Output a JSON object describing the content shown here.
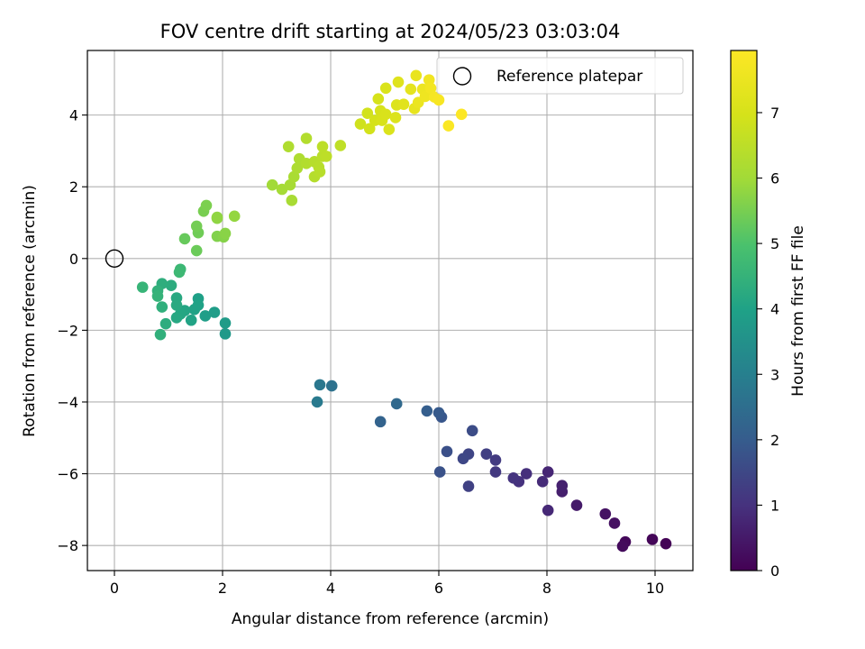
{
  "chart_data": {
    "type": "scatter",
    "title": "FOV centre drift starting at 2024/05/23 03:03:04",
    "xlabel": "Angular distance from reference (arcmin)",
    "ylabel": "Rotation from reference (arcmin)",
    "xlim": [
      -0.5,
      10.7
    ],
    "ylim": [
      -8.7,
      5.8
    ],
    "xticks": [
      0,
      2,
      4,
      6,
      8,
      10
    ],
    "yticks": [
      -8,
      -6,
      -4,
      -2,
      0,
      2,
      4
    ],
    "xtick_labels": [
      "0",
      "2",
      "4",
      "6",
      "8",
      "10"
    ],
    "ytick_labels": [
      "−8",
      "−6",
      "−4",
      "−2",
      "0",
      "2",
      "4"
    ],
    "grid": true,
    "colormap": "viridis",
    "colorbar": {
      "label": "Hours from first FF file",
      "range": [
        0,
        7.95
      ],
      "ticks": [
        0,
        1,
        2,
        3,
        4,
        5,
        6,
        7
      ],
      "tick_labels": [
        "0",
        "1",
        "2",
        "3",
        "4",
        "5",
        "6",
        "7"
      ]
    },
    "legend": {
      "location": "top-right",
      "entries": [
        {
          "label": "Reference platepar",
          "marker": "open-circle"
        }
      ]
    },
    "reference_point": {
      "x": 0,
      "y": 0
    },
    "points": [
      {
        "x": 10.2,
        "y": -7.95,
        "h": 0.05
      },
      {
        "x": 9.95,
        "y": -7.83,
        "h": 0.1
      },
      {
        "x": 9.45,
        "y": -7.9,
        "h": 0.15
      },
      {
        "x": 9.4,
        "y": -8.02,
        "h": 0.2
      },
      {
        "x": 9.25,
        "y": -7.38,
        "h": 0.3
      },
      {
        "x": 9.08,
        "y": -7.12,
        "h": 0.35
      },
      {
        "x": 8.55,
        "y": -6.88,
        "h": 0.5
      },
      {
        "x": 8.28,
        "y": -6.5,
        "h": 0.6
      },
      {
        "x": 8.28,
        "y": -6.33,
        "h": 0.65
      },
      {
        "x": 8.02,
        "y": -5.95,
        "h": 0.75
      },
      {
        "x": 8.02,
        "y": -7.02,
        "h": 0.8
      },
      {
        "x": 7.92,
        "y": -6.22,
        "h": 0.85
      },
      {
        "x": 7.62,
        "y": -6.0,
        "h": 0.95
      },
      {
        "x": 7.48,
        "y": -6.22,
        "h": 1.0
      },
      {
        "x": 7.38,
        "y": -6.12,
        "h": 1.05
      },
      {
        "x": 7.05,
        "y": -5.95,
        "h": 1.15
      },
      {
        "x": 7.05,
        "y": -5.62,
        "h": 1.2
      },
      {
        "x": 6.88,
        "y": -5.45,
        "h": 1.3
      },
      {
        "x": 6.55,
        "y": -6.35,
        "h": 1.35
      },
      {
        "x": 6.55,
        "y": -5.45,
        "h": 1.45
      },
      {
        "x": 6.45,
        "y": -5.58,
        "h": 1.5
      },
      {
        "x": 6.62,
        "y": -4.8,
        "h": 1.6
      },
      {
        "x": 6.15,
        "y": -5.38,
        "h": 1.7
      },
      {
        "x": 6.02,
        "y": -5.95,
        "h": 1.75
      },
      {
        "x": 6.05,
        "y": -4.42,
        "h": 1.85
      },
      {
        "x": 6.0,
        "y": -4.3,
        "h": 1.95
      },
      {
        "x": 5.78,
        "y": -4.25,
        "h": 2.05
      },
      {
        "x": 4.92,
        "y": -4.55,
        "h": 2.2
      },
      {
        "x": 5.22,
        "y": -4.05,
        "h": 2.35
      },
      {
        "x": 4.02,
        "y": -3.55,
        "h": 2.6
      },
      {
        "x": 3.8,
        "y": -3.52,
        "h": 2.75
      },
      {
        "x": 3.75,
        "y": -4.0,
        "h": 2.85
      },
      {
        "x": 2.05,
        "y": -2.1,
        "h": 3.75
      },
      {
        "x": 2.05,
        "y": -1.8,
        "h": 3.8
      },
      {
        "x": 1.85,
        "y": -1.5,
        "h": 3.85
      },
      {
        "x": 1.68,
        "y": -1.6,
        "h": 3.9
      },
      {
        "x": 1.55,
        "y": -1.12,
        "h": 3.95
      },
      {
        "x": 1.55,
        "y": -1.3,
        "h": 4.0
      },
      {
        "x": 1.48,
        "y": -1.42,
        "h": 4.02
      },
      {
        "x": 1.42,
        "y": -1.72,
        "h": 4.05
      },
      {
        "x": 1.3,
        "y": -1.45,
        "h": 4.1
      },
      {
        "x": 1.22,
        "y": -1.55,
        "h": 4.12
      },
      {
        "x": 1.15,
        "y": -1.65,
        "h": 4.15
      },
      {
        "x": 1.15,
        "y": -1.1,
        "h": 4.2
      },
      {
        "x": 1.15,
        "y": -1.3,
        "h": 4.22
      },
      {
        "x": 1.05,
        "y": -0.75,
        "h": 4.3
      },
      {
        "x": 0.95,
        "y": -1.82,
        "h": 4.32
      },
      {
        "x": 0.88,
        "y": -0.7,
        "h": 4.35
      },
      {
        "x": 0.88,
        "y": -1.35,
        "h": 4.4
      },
      {
        "x": 0.85,
        "y": -2.12,
        "h": 4.42
      },
      {
        "x": 0.8,
        "y": -0.9,
        "h": 4.45
      },
      {
        "x": 0.8,
        "y": -1.05,
        "h": 4.5
      },
      {
        "x": 0.52,
        "y": -0.8,
        "h": 4.55
      },
      {
        "x": 1.22,
        "y": -0.3,
        "h": 4.65
      },
      {
        "x": 1.2,
        "y": -0.38,
        "h": 4.7
      },
      {
        "x": 1.3,
        "y": 0.55,
        "h": 5.3
      },
      {
        "x": 1.52,
        "y": 0.22,
        "h": 5.35
      },
      {
        "x": 1.55,
        "y": 0.72,
        "h": 5.4
      },
      {
        "x": 1.52,
        "y": 0.9,
        "h": 5.45
      },
      {
        "x": 1.65,
        "y": 1.32,
        "h": 5.5
      },
      {
        "x": 1.7,
        "y": 1.48,
        "h": 5.55
      },
      {
        "x": 1.9,
        "y": 0.62,
        "h": 5.6
      },
      {
        "x": 2.02,
        "y": 0.6,
        "h": 5.65
      },
      {
        "x": 2.05,
        "y": 0.7,
        "h": 5.7
      },
      {
        "x": 1.9,
        "y": 1.12,
        "h": 5.75
      },
      {
        "x": 1.9,
        "y": 1.15,
        "h": 5.78
      },
      {
        "x": 2.22,
        "y": 1.18,
        "h": 5.82
      },
      {
        "x": 2.92,
        "y": 2.05,
        "h": 6.0
      },
      {
        "x": 3.1,
        "y": 1.93,
        "h": 6.05
      },
      {
        "x": 3.25,
        "y": 2.05,
        "h": 6.1
      },
      {
        "x": 3.28,
        "y": 1.62,
        "h": 6.12
      },
      {
        "x": 3.32,
        "y": 2.28,
        "h": 6.15
      },
      {
        "x": 3.38,
        "y": 2.52,
        "h": 6.2
      },
      {
        "x": 3.42,
        "y": 2.78,
        "h": 6.22
      },
      {
        "x": 3.22,
        "y": 3.12,
        "h": 6.25
      },
      {
        "x": 3.55,
        "y": 2.65,
        "h": 6.3
      },
      {
        "x": 3.55,
        "y": 3.35,
        "h": 6.32
      },
      {
        "x": 3.7,
        "y": 2.28,
        "h": 6.35
      },
      {
        "x": 3.7,
        "y": 2.7,
        "h": 6.38
      },
      {
        "x": 3.78,
        "y": 2.55,
        "h": 6.4
      },
      {
        "x": 3.8,
        "y": 2.42,
        "h": 6.42
      },
      {
        "x": 3.85,
        "y": 2.85,
        "h": 6.45
      },
      {
        "x": 3.85,
        "y": 3.12,
        "h": 6.48
      },
      {
        "x": 3.92,
        "y": 2.85,
        "h": 6.5
      },
      {
        "x": 4.18,
        "y": 3.15,
        "h": 6.55
      },
      {
        "x": 4.55,
        "y": 3.75,
        "h": 6.85
      },
      {
        "x": 4.68,
        "y": 4.05,
        "h": 6.9
      },
      {
        "x": 4.72,
        "y": 3.62,
        "h": 6.92
      },
      {
        "x": 4.82,
        "y": 3.85,
        "h": 6.95
      },
      {
        "x": 4.88,
        "y": 4.45,
        "h": 6.98
      },
      {
        "x": 4.92,
        "y": 4.12,
        "h": 7.0
      },
      {
        "x": 4.95,
        "y": 3.85,
        "h": 7.02
      },
      {
        "x": 5.02,
        "y": 4.02,
        "h": 7.05
      },
      {
        "x": 5.02,
        "y": 4.75,
        "h": 7.08
      },
      {
        "x": 5.08,
        "y": 3.6,
        "h": 7.1
      },
      {
        "x": 5.2,
        "y": 3.93,
        "h": 7.12
      },
      {
        "x": 5.22,
        "y": 4.28,
        "h": 7.15
      },
      {
        "x": 5.25,
        "y": 4.92,
        "h": 7.2
      },
      {
        "x": 5.35,
        "y": 4.3,
        "h": 7.25
      },
      {
        "x": 5.48,
        "y": 4.72,
        "h": 7.35
      },
      {
        "x": 5.55,
        "y": 4.18,
        "h": 7.4
      },
      {
        "x": 5.58,
        "y": 5.1,
        "h": 7.45
      },
      {
        "x": 5.62,
        "y": 4.35,
        "h": 7.5
      },
      {
        "x": 5.7,
        "y": 4.72,
        "h": 7.55
      },
      {
        "x": 5.75,
        "y": 4.52,
        "h": 7.6
      },
      {
        "x": 5.82,
        "y": 4.98,
        "h": 7.65
      },
      {
        "x": 5.85,
        "y": 4.75,
        "h": 7.7
      },
      {
        "x": 5.92,
        "y": 4.5,
        "h": 7.75
      },
      {
        "x": 6.0,
        "y": 4.42,
        "h": 7.8
      },
      {
        "x": 6.18,
        "y": 3.7,
        "h": 7.88
      },
      {
        "x": 6.42,
        "y": 4.02,
        "h": 7.92
      }
    ]
  }
}
